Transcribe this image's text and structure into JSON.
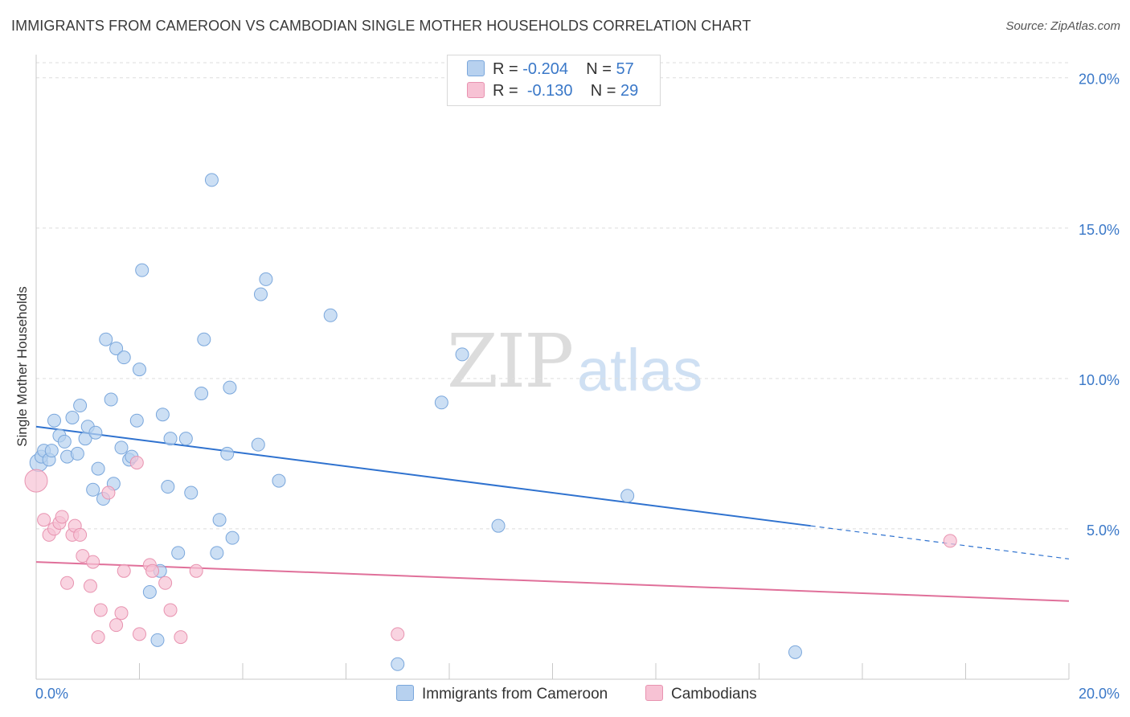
{
  "header": {
    "title": "IMMIGRANTS FROM CAMEROON VS CAMBODIAN SINGLE MOTHER HOUSEHOLDS CORRELATION CHART",
    "source": "Source: ZipAtlas.com"
  },
  "watermark": {
    "zip": "ZIP",
    "atlas": "atlas"
  },
  "legend": {
    "rows": [
      {
        "r_label": "R =",
        "r_value": "-0.204",
        "n_label": "N =",
        "n_value": "57"
      },
      {
        "r_label": "R =",
        "r_value": "-0.130",
        "n_label": "N =",
        "n_value": "29"
      }
    ]
  },
  "chart_data": {
    "type": "scatter",
    "ylabel": "Single Mother Households",
    "x_tick_labels": {
      "left": "0.0%",
      "right": "20.0%"
    },
    "y_tick_labels": [
      "5.0%",
      "10.0%",
      "15.0%",
      "20.0%"
    ],
    "xlim": [
      0,
      20
    ],
    "ylim": [
      0,
      20.5
    ],
    "grid": true,
    "legend_position": "top-center",
    "colors": {
      "cameroon_fill": "#b7d1ef",
      "cameroon_stroke": "#7aa7dc",
      "cameroon_line": "#2f72cf",
      "cambodian_fill": "#f7c2d4",
      "cambodian_stroke": "#e893b0",
      "cambodian_line": "#e0709a",
      "tick_text": "#3a78c8"
    },
    "series": [
      {
        "name": "Immigrants from Cameroon",
        "points": [
          [
            0.05,
            7.2
          ],
          [
            0.1,
            7.4
          ],
          [
            0.15,
            7.6
          ],
          [
            0.25,
            7.3
          ],
          [
            0.3,
            7.6
          ],
          [
            0.35,
            8.6
          ],
          [
            0.45,
            8.1
          ],
          [
            0.55,
            7.9
          ],
          [
            0.6,
            7.4
          ],
          [
            0.7,
            8.7
          ],
          [
            0.8,
            7.5
          ],
          [
            0.85,
            9.1
          ],
          [
            0.95,
            8.0
          ],
          [
            1.0,
            8.4
          ],
          [
            1.1,
            6.3
          ],
          [
            1.15,
            8.2
          ],
          [
            1.2,
            7.0
          ],
          [
            1.3,
            6.0
          ],
          [
            1.35,
            11.3
          ],
          [
            1.45,
            9.3
          ],
          [
            1.5,
            6.5
          ],
          [
            1.55,
            11.0
          ],
          [
            1.65,
            7.7
          ],
          [
            1.7,
            10.7
          ],
          [
            1.8,
            7.3
          ],
          [
            1.85,
            7.4
          ],
          [
            1.95,
            8.6
          ],
          [
            2.0,
            10.3
          ],
          [
            2.05,
            13.6
          ],
          [
            2.2,
            2.9
          ],
          [
            2.35,
            1.3
          ],
          [
            2.4,
            3.6
          ],
          [
            2.45,
            8.8
          ],
          [
            2.55,
            6.4
          ],
          [
            2.6,
            8.0
          ],
          [
            2.75,
            4.2
          ],
          [
            2.9,
            8.0
          ],
          [
            3.0,
            6.2
          ],
          [
            3.2,
            9.5
          ],
          [
            3.25,
            11.3
          ],
          [
            3.4,
            16.6
          ],
          [
            3.5,
            4.2
          ],
          [
            3.55,
            5.3
          ],
          [
            3.7,
            7.5
          ],
          [
            3.75,
            9.7
          ],
          [
            3.8,
            4.7
          ],
          [
            4.3,
            7.8
          ],
          [
            4.35,
            12.8
          ],
          [
            4.45,
            13.3
          ],
          [
            4.7,
            6.6
          ],
          [
            5.7,
            12.1
          ],
          [
            7.0,
            0.5
          ],
          [
            7.85,
            9.2
          ],
          [
            8.25,
            10.8
          ],
          [
            8.95,
            5.1
          ],
          [
            11.45,
            6.1
          ],
          [
            14.7,
            0.9
          ]
        ],
        "trend": {
          "x": [
            0,
            15
          ],
          "y": [
            8.4,
            5.1
          ],
          "dashed_x": [
            15,
            20
          ],
          "dashed_y": [
            5.1,
            4.0
          ]
        }
      },
      {
        "name": "Cambodians",
        "points": [
          [
            0.0,
            6.6
          ],
          [
            0.15,
            5.3
          ],
          [
            0.25,
            4.8
          ],
          [
            0.35,
            5.0
          ],
          [
            0.45,
            5.2
          ],
          [
            0.5,
            5.4
          ],
          [
            0.6,
            3.2
          ],
          [
            0.7,
            4.8
          ],
          [
            0.75,
            5.1
          ],
          [
            0.85,
            4.8
          ],
          [
            0.9,
            4.1
          ],
          [
            1.05,
            3.1
          ],
          [
            1.1,
            3.9
          ],
          [
            1.2,
            1.4
          ],
          [
            1.25,
            2.3
          ],
          [
            1.4,
            6.2
          ],
          [
            1.55,
            1.8
          ],
          [
            1.65,
            2.2
          ],
          [
            1.7,
            3.6
          ],
          [
            1.95,
            7.2
          ],
          [
            2.0,
            1.5
          ],
          [
            2.2,
            3.8
          ],
          [
            2.25,
            3.6
          ],
          [
            2.5,
            3.2
          ],
          [
            2.6,
            2.3
          ],
          [
            2.8,
            1.4
          ],
          [
            3.1,
            3.6
          ],
          [
            7.0,
            1.5
          ],
          [
            17.7,
            4.6
          ]
        ],
        "trend": {
          "x": [
            0,
            20
          ],
          "y": [
            3.9,
            2.6
          ]
        }
      }
    ]
  },
  "bottom_legend": {
    "items": [
      {
        "label": "Immigrants from Cameroon"
      },
      {
        "label": "Cambodians"
      }
    ]
  }
}
